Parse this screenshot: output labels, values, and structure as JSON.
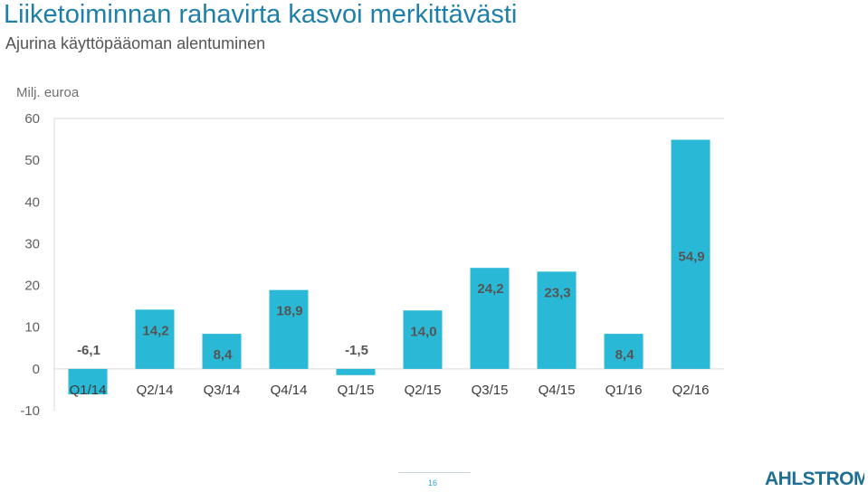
{
  "header": {
    "title": "Liiketoiminnan rahavirta kasvoi merkittävästi",
    "subtitle": "Ajurina käyttöpääoman alentuminen"
  },
  "chart_data": {
    "type": "bar",
    "ylabel": "Milj. euroa",
    "ylim": [
      -10,
      60
    ],
    "yticks": [
      "-10",
      "0",
      "10",
      "20",
      "30",
      "40",
      "50",
      "60"
    ],
    "grid": false,
    "categories": [
      "Q1/14",
      "Q2/14",
      "Q3/14",
      "Q4/14",
      "Q1/15",
      "Q2/15",
      "Q3/15",
      "Q4/15",
      "Q1/16",
      "Q2/16"
    ],
    "values": [
      -6.1,
      14.2,
      8.4,
      18.9,
      -1.5,
      14.0,
      24.2,
      23.3,
      8.4,
      54.9
    ],
    "data_labels": [
      "-6,1",
      "14,2",
      "8,4",
      "18,9",
      "-1,5",
      "14,0",
      "24,2",
      "23,3",
      "8,4",
      "54,9"
    ],
    "bar_color": "#29b9d6"
  },
  "footer": {
    "page_number": "16",
    "logo_text": "AHLSTROM"
  }
}
